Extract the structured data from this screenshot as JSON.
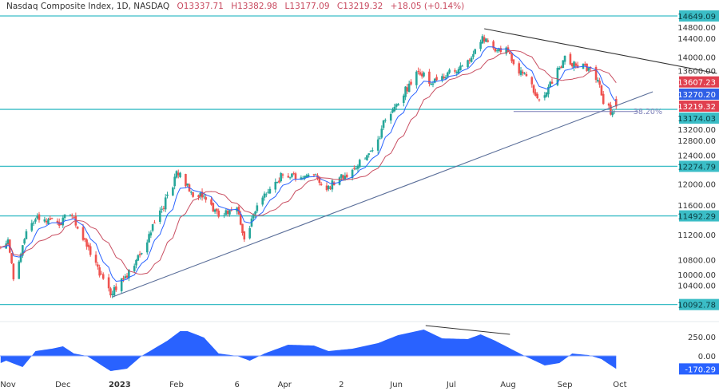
{
  "header": {
    "title": "Nasdaq Composite Index, 1D, NASDAQ",
    "open_label": "O",
    "open": "13337.71",
    "high_label": "H",
    "high": "13382.98",
    "low_label": "L",
    "low": "13177.09",
    "close_label": "C",
    "close": "13219.32",
    "change": "+18.05 (+0.14%)"
  },
  "chart_data": {
    "type": "candlestick",
    "symbol": "Nasdaq Composite Index",
    "interval": "1D",
    "exchange": "NASDAQ",
    "yrange": [
      10000,
      14800
    ],
    "y_ticks": [
      "14800.00",
      "14400.00",
      "14000.00",
      "13600.00",
      "13200.00",
      "12800.00",
      "12400.00",
      "12000.00",
      "11600.00",
      "11200.00",
      "10800.00",
      "10400.00",
      "10000.00"
    ],
    "x_ticks": [
      {
        "label": "Nov",
        "date": "2022-11-01"
      },
      {
        "label": "Dec",
        "date": "2022-12-01"
      },
      {
        "label": "2023",
        "date": "2023-01-01",
        "bold": true
      },
      {
        "label": "Feb",
        "date": "2023-02-01"
      },
      {
        "label": "6",
        "date": "2023-03-06"
      },
      {
        "label": "Apr",
        "date": "2023-04-01"
      },
      {
        "label": "2",
        "date": "2023-05-02"
      },
      {
        "label": "Jun",
        "date": "2023-06-01"
      },
      {
        "label": "Jul",
        "date": "2023-07-01"
      },
      {
        "label": "Aug",
        "date": "2023-08-01"
      },
      {
        "label": "Sep",
        "date": "2023-09-01"
      },
      {
        "label": "Oct",
        "date": "2023-10-01"
      }
    ],
    "closes": [
      [
        "2022-10-28",
        10995
      ],
      [
        "2022-11-01",
        11120
      ],
      [
        "2022-11-04",
        10490
      ],
      [
        "2022-11-11",
        11250
      ],
      [
        "2022-11-16",
        11440
      ],
      [
        "2022-11-28",
        11380
      ],
      [
        "2022-12-05",
        11500
      ],
      [
        "2022-12-15",
        11000
      ],
      [
        "2022-12-21",
        10550
      ],
      [
        "2022-12-28",
        10260
      ],
      [
        "2023-01-03",
        10490
      ],
      [
        "2023-01-12",
        10870
      ],
      [
        "2023-01-20",
        11380
      ],
      [
        "2023-01-30",
        11940
      ],
      [
        "2023-02-01",
        12200
      ],
      [
        "2023-02-09",
        11870
      ],
      [
        "2023-02-16",
        11810
      ],
      [
        "2023-02-21",
        11560
      ],
      [
        "2023-02-27",
        11500
      ],
      [
        "2023-03-06",
        11620
      ],
      [
        "2023-03-10",
        11120
      ],
      [
        "2023-03-16",
        11560
      ],
      [
        "2023-03-23",
        11870
      ],
      [
        "2023-03-31",
        12130
      ],
      [
        "2023-04-10",
        12100
      ],
      [
        "2023-04-18",
        12150
      ],
      [
        "2023-04-24",
        11900
      ],
      [
        "2023-05-01",
        12100
      ],
      [
        "2023-05-08",
        12220
      ],
      [
        "2023-05-16",
        12450
      ],
      [
        "2023-05-22",
        12700
      ],
      [
        "2023-05-26",
        13010
      ],
      [
        "2023-06-02",
        13260
      ],
      [
        "2023-06-08",
        13580
      ],
      [
        "2023-06-13",
        13770
      ],
      [
        "2023-06-20",
        13580
      ],
      [
        "2023-06-26",
        13700
      ],
      [
        "2023-07-03",
        13770
      ],
      [
        "2023-07-10",
        13950
      ],
      [
        "2023-07-18",
        14330
      ],
      [
        "2023-07-24",
        14140
      ],
      [
        "2023-07-31",
        14150
      ],
      [
        "2023-08-04",
        13890
      ],
      [
        "2023-08-11",
        13700
      ],
      [
        "2023-08-18",
        13330
      ],
      [
        "2023-08-25",
        13580
      ],
      [
        "2023-08-29",
        13830
      ],
      [
        "2023-09-01",
        14020
      ],
      [
        "2023-09-08",
        13830
      ],
      [
        "2023-09-14",
        13830
      ],
      [
        "2023-09-19",
        13640
      ],
      [
        "2023-09-22",
        13260
      ],
      [
        "2023-09-27",
        13130
      ],
      [
        "2023-09-29",
        13219.32
      ]
    ],
    "moving_averages": [
      {
        "color": "#2962ff",
        "last_value": "13270.20"
      },
      {
        "color": "#c94f62",
        "last_value": "13607.23"
      }
    ],
    "horizontal_levels": [
      "14649.09",
      "13174.03",
      "12274.79",
      "11492.29",
      "10092.78"
    ],
    "level_color": "#3bbdc6",
    "last_price_label": "13219.32",
    "trendlines": [
      {
        "from": [
          "2022-12-28",
          10213
        ],
        "to": [
          "2023-10-19",
          13452
        ],
        "color": "#5a6e99"
      },
      {
        "from": [
          "2023-07-19",
          14447
        ],
        "to": [
          "2023-11-23",
          13742
        ],
        "color": "#333333"
      }
    ],
    "fib_level": {
      "label": "38.20%",
      "price": 13140,
      "from": "2023-08-04",
      "to": "2023-10-11",
      "color": "#7c7fb8"
    },
    "oscillator": {
      "yticks": [
        "250.00",
        "0.00"
      ],
      "last_value": "-170.29",
      "color": "#2962ff",
      "values": [
        [
          "2022-10-28",
          -94
        ],
        [
          "2022-10-31",
          -63
        ],
        [
          "2022-11-09",
          -146
        ],
        [
          "2022-11-14",
          0
        ],
        [
          "2022-11-16",
          63
        ],
        [
          "2022-11-25",
          94
        ],
        [
          "2022-12-01",
          125
        ],
        [
          "2022-12-07",
          31
        ],
        [
          "2022-12-14",
          0
        ],
        [
          "2022-12-27",
          -198
        ],
        [
          "2023-01-05",
          -167
        ],
        [
          "2023-01-13",
          0
        ],
        [
          "2023-01-27",
          198
        ],
        [
          "2023-02-03",
          323
        ],
        [
          "2023-02-07",
          323
        ],
        [
          "2023-02-16",
          240
        ],
        [
          "2023-02-24",
          31
        ],
        [
          "2023-03-06",
          0
        ],
        [
          "2023-03-13",
          -63
        ],
        [
          "2023-03-21",
          31
        ],
        [
          "2023-04-03",
          146
        ],
        [
          "2023-04-17",
          135
        ],
        [
          "2023-04-25",
          63
        ],
        [
          "2023-05-08",
          94
        ],
        [
          "2023-05-22",
          167
        ],
        [
          "2023-06-02",
          271
        ],
        [
          "2023-06-16",
          344
        ],
        [
          "2023-06-26",
          229
        ],
        [
          "2023-07-10",
          219
        ],
        [
          "2023-07-17",
          281
        ],
        [
          "2023-07-25",
          198
        ],
        [
          "2023-08-10",
          0
        ],
        [
          "2023-08-21",
          -125
        ],
        [
          "2023-08-29",
          -94
        ],
        [
          "2023-09-05",
          31
        ],
        [
          "2023-09-14",
          10
        ],
        [
          "2023-09-21",
          -42
        ],
        [
          "2023-09-29",
          -170.29
        ]
      ],
      "divergence_line": {
        "from": [
          "2023-06-17",
          396
        ],
        "to": [
          "2023-08-02",
          281
        ],
        "color": "#333333"
      }
    },
    "colors": {
      "up": "#26a69a",
      "down": "#ef5350"
    }
  }
}
